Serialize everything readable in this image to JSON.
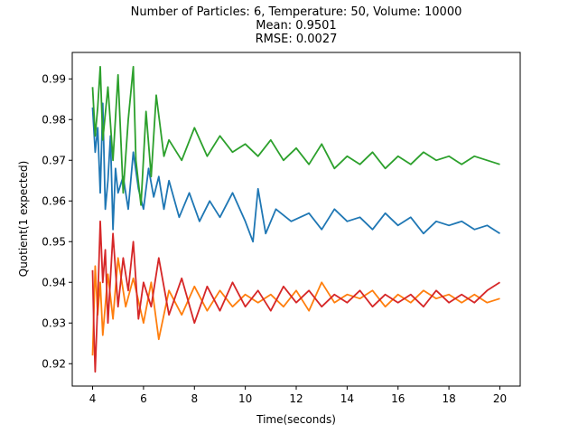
{
  "chart_data": {
    "type": "line",
    "title_lines": [
      "Number of Particles: 6, Temperature: 50, Volume: 10000",
      "Mean: 0.9501",
      "RMSE: 0.0027"
    ],
    "xlabel": "Time(seconds)",
    "ylabel": "Quotient(1 expected)",
    "xlim": [
      3.2,
      20.8
    ],
    "ylim": [
      0.9145,
      0.9965
    ],
    "xticks": [
      4,
      6,
      8,
      10,
      12,
      14,
      16,
      18,
      20
    ],
    "yticks": [
      0.92,
      0.93,
      0.94,
      0.95,
      0.96,
      0.97,
      0.98,
      0.99
    ],
    "xtick_labels": [
      "4",
      "6",
      "8",
      "10",
      "12",
      "14",
      "16",
      "18",
      "20"
    ],
    "ytick_labels": [
      "0.92",
      "0.93",
      "0.94",
      "0.95",
      "0.96",
      "0.97",
      "0.98",
      "0.99"
    ],
    "grid": false,
    "legend": "none",
    "series": [
      {
        "color": "#1f77b4",
        "x": [
          4.0,
          4.1,
          4.2,
          4.3,
          4.4,
          4.5,
          4.6,
          4.7,
          4.8,
          4.9,
          5.0,
          5.2,
          5.4,
          5.6,
          5.8,
          6.0,
          6.2,
          6.4,
          6.6,
          6.8,
          7.0,
          7.4,
          7.8,
          8.2,
          8.6,
          9.0,
          9.5,
          10.0,
          10.3,
          10.5,
          10.8,
          11.2,
          11.8,
          12.5,
          13.0,
          13.5,
          14.0,
          14.5,
          15.0,
          15.5,
          16.0,
          16.5,
          17.0,
          17.5,
          18.0,
          18.5,
          19.0,
          19.5,
          20.0
        ],
        "y": [
          0.983,
          0.972,
          0.978,
          0.962,
          0.984,
          0.958,
          0.965,
          0.976,
          0.953,
          0.968,
          0.962,
          0.966,
          0.958,
          0.972,
          0.963,
          0.958,
          0.968,
          0.961,
          0.966,
          0.958,
          0.965,
          0.956,
          0.962,
          0.955,
          0.96,
          0.956,
          0.962,
          0.955,
          0.95,
          0.963,
          0.952,
          0.958,
          0.955,
          0.957,
          0.953,
          0.958,
          0.955,
          0.956,
          0.953,
          0.957,
          0.954,
          0.956,
          0.952,
          0.955,
          0.954,
          0.955,
          0.953,
          0.954,
          0.952
        ]
      },
      {
        "color": "#ff7f0e",
        "x": [
          4.0,
          4.1,
          4.2,
          4.3,
          4.4,
          4.6,
          4.8,
          5.0,
          5.3,
          5.6,
          6.0,
          6.3,
          6.6,
          7.0,
          7.5,
          8.0,
          8.5,
          9.0,
          9.5,
          10.0,
          10.5,
          11.0,
          11.5,
          12.0,
          12.5,
          13.0,
          13.5,
          14.0,
          14.5,
          15.0,
          15.5,
          16.0,
          16.5,
          17.0,
          17.5,
          18.0,
          18.5,
          19.0,
          19.5,
          20.0
        ],
        "y": [
          0.922,
          0.944,
          0.932,
          0.94,
          0.927,
          0.942,
          0.931,
          0.946,
          0.934,
          0.941,
          0.93,
          0.94,
          0.926,
          0.938,
          0.932,
          0.939,
          0.933,
          0.938,
          0.934,
          0.937,
          0.935,
          0.937,
          0.934,
          0.938,
          0.933,
          0.94,
          0.935,
          0.937,
          0.936,
          0.938,
          0.934,
          0.937,
          0.935,
          0.938,
          0.936,
          0.937,
          0.935,
          0.937,
          0.935,
          0.936
        ]
      },
      {
        "color": "#2ca02c",
        "x": [
          4.0,
          4.1,
          4.2,
          4.3,
          4.4,
          4.6,
          4.8,
          5.0,
          5.2,
          5.4,
          5.6,
          5.7,
          5.9,
          6.1,
          6.3,
          6.5,
          6.8,
          7.0,
          7.5,
          8.0,
          8.5,
          9.0,
          9.5,
          10.0,
          10.5,
          11.0,
          11.5,
          12.0,
          12.5,
          13.0,
          13.5,
          14.0,
          14.5,
          15.0,
          15.5,
          16.0,
          16.5,
          17.0,
          17.5,
          18.0,
          18.5,
          19.0,
          19.5,
          20.0
        ],
        "y": [
          0.988,
          0.976,
          0.983,
          0.993,
          0.975,
          0.988,
          0.97,
          0.991,
          0.962,
          0.98,
          0.993,
          0.97,
          0.959,
          0.982,
          0.966,
          0.986,
          0.971,
          0.975,
          0.97,
          0.978,
          0.971,
          0.976,
          0.972,
          0.974,
          0.971,
          0.975,
          0.97,
          0.973,
          0.969,
          0.974,
          0.968,
          0.971,
          0.969,
          0.972,
          0.968,
          0.971,
          0.969,
          0.972,
          0.97,
          0.971,
          0.969,
          0.971,
          0.97,
          0.969
        ]
      },
      {
        "color": "#d62728",
        "x": [
          4.0,
          4.05,
          4.1,
          4.2,
          4.3,
          4.4,
          4.5,
          4.6,
          4.8,
          5.0,
          5.2,
          5.4,
          5.6,
          5.8,
          6.0,
          6.3,
          6.6,
          7.0,
          7.5,
          8.0,
          8.5,
          9.0,
          9.5,
          10.0,
          10.5,
          11.0,
          11.5,
          12.0,
          12.5,
          13.0,
          13.5,
          14.0,
          14.5,
          15.0,
          15.5,
          16.0,
          16.5,
          17.0,
          17.5,
          18.0,
          18.5,
          19.0,
          19.5,
          20.0
        ],
        "y": [
          0.943,
          0.928,
          0.918,
          0.935,
          0.955,
          0.94,
          0.948,
          0.93,
          0.952,
          0.934,
          0.946,
          0.938,
          0.95,
          0.931,
          0.94,
          0.934,
          0.946,
          0.932,
          0.941,
          0.93,
          0.939,
          0.933,
          0.94,
          0.934,
          0.938,
          0.933,
          0.939,
          0.935,
          0.938,
          0.934,
          0.937,
          0.935,
          0.938,
          0.934,
          0.937,
          0.935,
          0.937,
          0.934,
          0.938,
          0.935,
          0.937,
          0.935,
          0.938,
          0.94
        ]
      }
    ]
  }
}
